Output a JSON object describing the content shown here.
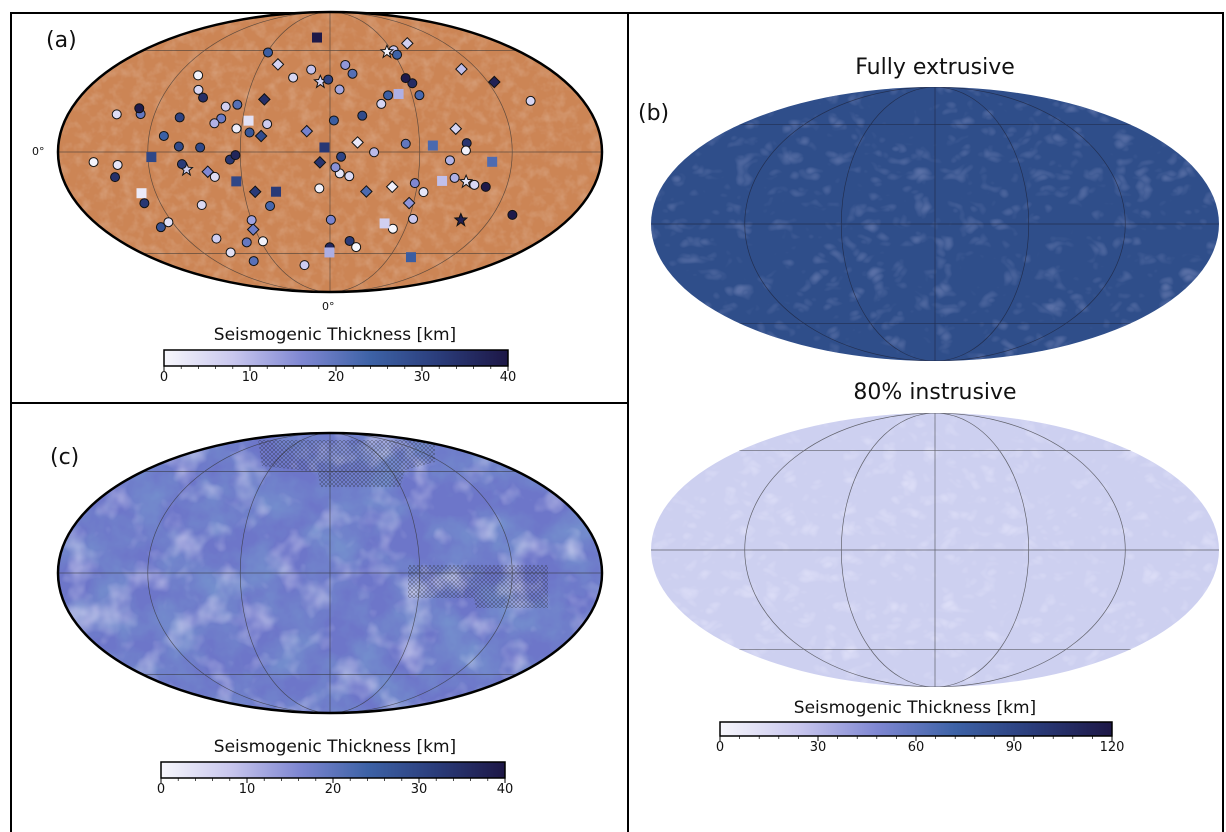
{
  "panel_a": {
    "label": "(a)",
    "lat_label": "0°",
    "lon_label": "0°",
    "colorbar": {
      "title": "Seismogenic Thickness [km]",
      "ticks": [
        "0",
        "10",
        "20",
        "30",
        "40"
      ],
      "min": 0,
      "max": 40,
      "colors": [
        "#f7f7fc",
        "#c9c7ee",
        "#7f87d2",
        "#3d62a6",
        "#2a3c7a",
        "#1d1746"
      ]
    },
    "base_color": "#cc8555"
  },
  "panel_b": {
    "label": "(b)",
    "map1_title": "Fully extrusive",
    "map2_title": "80% instrusive",
    "colorbar": {
      "title": "Seismogenic Thickness [km]",
      "ticks": [
        "0",
        "30",
        "60",
        "90",
        "120"
      ],
      "min": 0,
      "max": 120,
      "colors": [
        "#f7f7fc",
        "#c9c7ee",
        "#7f87d2",
        "#3d62a6",
        "#2a3c7a",
        "#1d1746"
      ]
    },
    "map1_color": "#2f4e8a",
    "map2_color": "#cdd0f0"
  },
  "panel_c": {
    "label": "(c)",
    "colorbar": {
      "title": "Seismogenic Thickness [km]",
      "ticks": [
        "0",
        "10",
        "20",
        "30",
        "40"
      ],
      "min": 0,
      "max": 40,
      "colors": [
        "#f7f7fc",
        "#c9c7ee",
        "#7f87d2",
        "#3d62a6",
        "#2a3c7a",
        "#1d1746"
      ]
    },
    "base_color": "#6d76c9"
  },
  "chart_data": [
    {
      "type": "scatter",
      "panel": "(a)",
      "colorbar_title": "Seismogenic Thickness [km]",
      "range": [
        0,
        40
      ],
      "legend": "none",
      "markers": [
        "circle",
        "diamond",
        "square",
        "triangle",
        "star"
      ]
    },
    {
      "type": "heatmap",
      "panel": "(b)",
      "maps": [
        "Fully extrusive",
        "80% instrusive"
      ],
      "colorbar_title": "Seismogenic Thickness [km]",
      "range": [
        0,
        120
      ]
    },
    {
      "type": "heatmap",
      "panel": "(c)",
      "colorbar_title": "Seismogenic Thickness [km]",
      "range": [
        0,
        40
      ]
    }
  ]
}
